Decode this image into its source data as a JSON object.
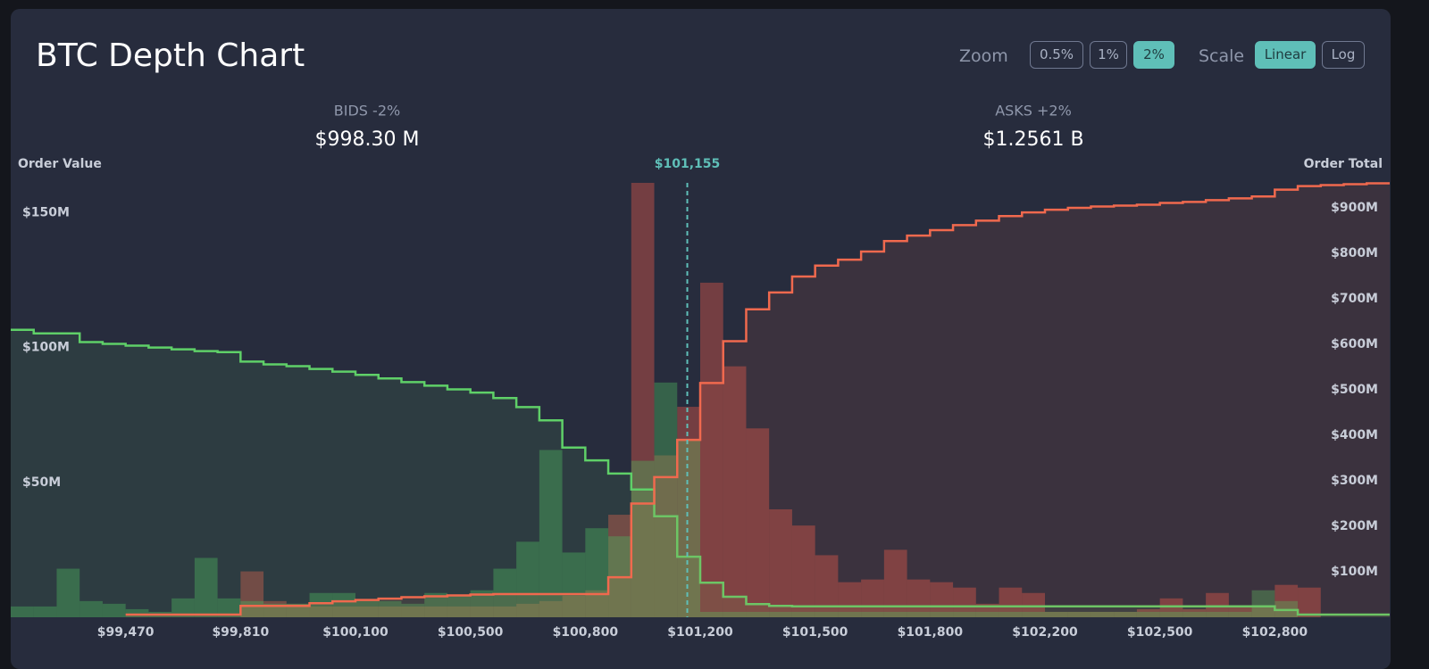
{
  "header": {
    "title": "BTC Depth Chart",
    "zoom": {
      "label": "Zoom",
      "options": [
        "0.5%",
        "1%",
        "2%"
      ],
      "active": 2
    },
    "scale": {
      "label": "Scale",
      "options": [
        "Linear",
        "Log"
      ],
      "active": 0
    }
  },
  "summary": {
    "bids": {
      "label": "BIDS -2%",
      "value": "$998.30 M"
    },
    "asks": {
      "label": "ASKS +2%",
      "value": "$1.2561 B"
    }
  },
  "chart_data": {
    "type": "depth",
    "y_label": "Order Value",
    "y2_label": "Order Total",
    "mid_price": {
      "value": 101155,
      "label": "$101,155"
    },
    "ylim": [
      0,
      161
    ],
    "yticks": [
      {
        "value": 50,
        "label": "$50M"
      },
      {
        "value": 100,
        "label": "$100M"
      },
      {
        "value": 150,
        "label": "$150M"
      }
    ],
    "y2lim": [
      0,
      955
    ],
    "y2ticks": [
      {
        "value": 100,
        "label": "$100M"
      },
      {
        "value": 200,
        "label": "$200M"
      },
      {
        "value": 300,
        "label": "$300M"
      },
      {
        "value": 400,
        "label": "$400M"
      },
      {
        "value": 500,
        "label": "$500M"
      },
      {
        "value": 600,
        "label": "$600M"
      },
      {
        "value": 700,
        "label": "$700M"
      },
      {
        "value": 800,
        "label": "$800M"
      },
      {
        "value": 900,
        "label": "$900M"
      }
    ],
    "xticks": [
      {
        "value": 99470,
        "label": "$99,470"
      },
      {
        "value": 99810,
        "label": "$99,810"
      },
      {
        "value": 100100,
        "label": "$100,100"
      },
      {
        "value": 100500,
        "label": "$100,500"
      },
      {
        "value": 100800,
        "label": "$100,800"
      },
      {
        "value": 101200,
        "label": "$101,200"
      },
      {
        "value": 101500,
        "label": "$101,500"
      },
      {
        "value": 101800,
        "label": "$101,800"
      },
      {
        "value": 102200,
        "label": "$102,200"
      },
      {
        "value": 102500,
        "label": "$102,500"
      },
      {
        "value": 102800,
        "label": "$102,800"
      }
    ],
    "bars": [
      {
        "color": "#e0574a",
        "values": [
          0,
          0,
          0,
          0,
          0,
          0,
          0,
          0,
          0,
          0,
          17,
          6,
          5,
          4,
          4,
          4,
          4,
          4,
          4,
          4,
          4,
          4,
          5,
          6,
          8,
          10,
          38,
          161,
          60,
          78,
          124,
          93,
          70,
          40,
          34,
          23,
          13,
          14,
          25,
          14,
          13,
          11,
          5,
          11,
          9,
          2,
          2,
          2,
          2,
          3,
          7,
          3,
          9,
          4,
          4,
          12,
          11,
          0,
          0,
          0
        ]
      },
      {
        "color": "#4caf5e",
        "values": [
          4,
          4,
          18,
          6,
          5,
          3,
          2,
          7,
          22,
          7,
          6,
          5,
          5,
          9,
          9,
          6,
          6,
          5,
          9,
          8,
          10,
          18,
          28,
          62,
          24,
          33,
          30,
          58,
          87,
          66,
          2,
          2,
          2,
          2,
          2,
          2,
          2,
          2,
          2,
          2,
          2,
          2,
          2,
          2,
          2,
          2,
          2,
          2,
          2,
          2,
          2,
          2,
          2,
          2,
          10,
          6,
          0,
          0,
          0,
          0
        ]
      }
    ],
    "lines": [
      {
        "color": "#5fd068",
        "axis": "y2",
        "values": [
          632,
          624,
          624,
          605,
          601,
          597,
          593,
          589,
          585,
          583,
          562,
          556,
          552,
          546,
          540,
          533,
          525,
          517,
          509,
          501,
          494,
          482,
          462,
          433,
          373,
          345,
          316,
          281,
          222,
          133,
          76,
          45,
          29,
          25,
          24,
          24,
          24,
          24,
          24,
          24,
          24,
          24,
          24,
          24,
          24,
          24,
          24,
          24,
          24,
          24,
          24,
          24,
          24,
          24,
          24,
          16,
          6,
          6,
          6,
          6
        ]
      },
      {
        "color": "#f0694e",
        "axis": "y2",
        "values": [
          null,
          null,
          null,
          null,
          null,
          6,
          6,
          6,
          6,
          6,
          25,
          25,
          25,
          31,
          35,
          38,
          41,
          44,
          46,
          48,
          50,
          51,
          51,
          51,
          51,
          51,
          88,
          250,
          308,
          390,
          515,
          607,
          677,
          714,
          749,
          773,
          786,
          804,
          827,
          839,
          851,
          862,
          872,
          882,
          890,
          896,
          900,
          903,
          905,
          907,
          911,
          913,
          917,
          921,
          925,
          940,
          948,
          950,
          952,
          954
        ]
      }
    ]
  }
}
